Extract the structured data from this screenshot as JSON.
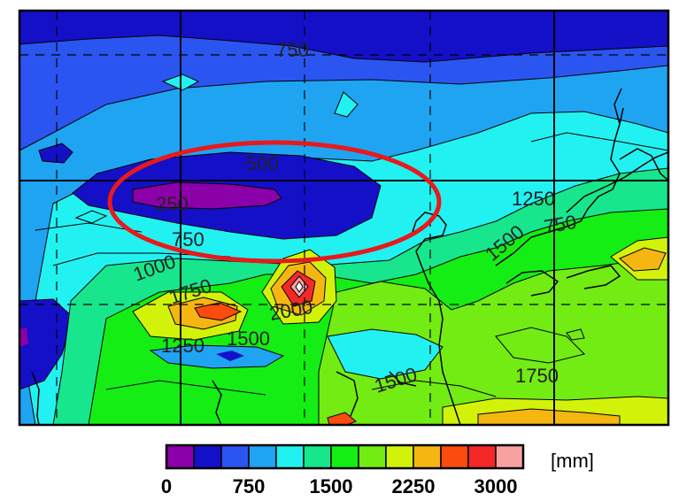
{
  "map": {
    "contour_labels": [
      "750",
      "500",
      "250",
      "750",
      "1000",
      "1750",
      "2000",
      "1250",
      "1500",
      "1500",
      "1250",
      "1500",
      "750",
      "1750"
    ],
    "highlight_color": "#e8191c"
  },
  "colorbar": {
    "colors": [
      "#8b00a8",
      "#1410c8",
      "#2b55f0",
      "#1fa4f2",
      "#22f1f1",
      "#17e68c",
      "#14ee14",
      "#72ec12",
      "#d3f20a",
      "#f5b611",
      "#fb4b0f",
      "#f52828",
      "#f8a1a1"
    ],
    "tick_labels": [
      "0",
      "750",
      "1500",
      "2250",
      "3000"
    ],
    "tick_values": [
      0,
      750,
      1500,
      2250,
      3000
    ],
    "unit": "[mm]"
  }
}
